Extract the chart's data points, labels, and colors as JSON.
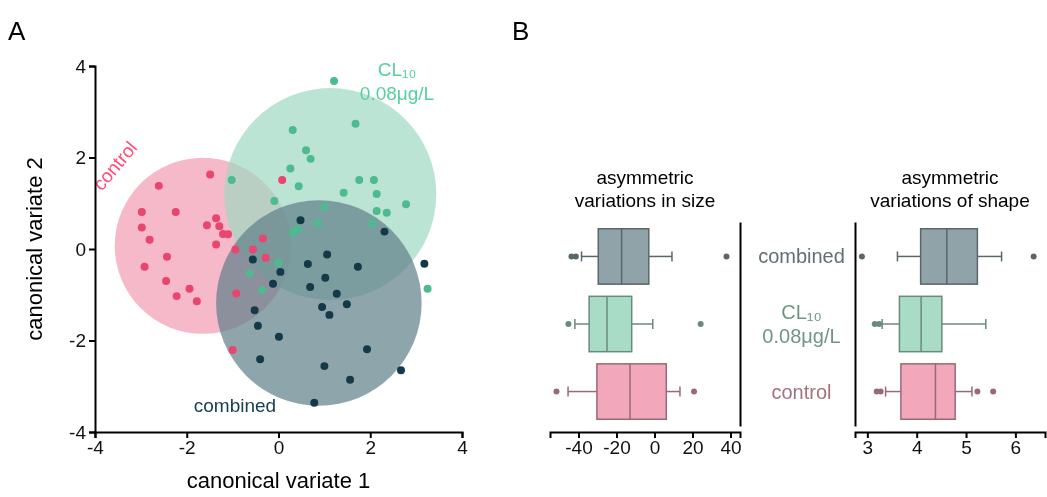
{
  "chart_data": [
    {
      "type": "scatter",
      "xlabel": "canonical variate 1",
      "ylabel": "canonical variate 2",
      "annotations": [
        "A"
      ],
      "xlim": [
        -4,
        4
      ],
      "ylim": [
        -4,
        4
      ],
      "xticks": [
        -4,
        -2,
        0,
        2,
        4
      ],
      "yticks": [
        -4,
        -2,
        0,
        2,
        4
      ],
      "marker": "circle",
      "grid": false,
      "series": [
        {
          "type": "bubble",
          "color": "#f19bb2",
          "x": [
            -1.65
          ],
          "values": [
            0.07
          ],
          "sizes": [
            0.69
          ]
        },
        {
          "type": "bubble",
          "color": "#9fd9c2",
          "x": [
            1.13
          ],
          "values": [
            1.2
          ],
          "sizes": [
            1
          ]
        },
        {
          "type": "bubble",
          "color": "#5f7f89",
          "x": [
            0.88
          ],
          "values": [
            -1.18
          ],
          "sizes": [
            0.94
          ]
        },
        {
          "name": "control",
          "color": "#e8456f",
          "x": [
            -1.49,
            -2.61,
            -2.98,
            -2.24,
            -2.98,
            -2.81,
            -1.36,
            -1.56,
            -1.29,
            -1.21,
            -1.1,
            -1.36,
            -2.43,
            -2.92,
            -0.94,
            -0.34,
            -0.56,
            -0.28,
            -2.45,
            -1.94,
            -2.22,
            -1.78,
            -0.92,
            0.08,
            -1.0
          ],
          "values": [
            1.63,
            1.38,
            0.81,
            0.81,
            0.47,
            0.2,
            0.67,
            0.52,
            0.5,
            0.33,
            0.32,
            0.1,
            -0.17,
            -0.39,
            -0.01,
            0.23,
            -0.01,
            -0.19,
            -0.7,
            -0.87,
            -1.03,
            -1.14,
            -0.97,
            1.51,
            -2.21
          ]
        },
        {
          "name": "CL₁₀ 0.08μg/L",
          "color": "#4dbb8f",
          "x": [
            1.21,
            1.68,
            0.31,
            0.6,
            0.7,
            0.26,
            0.44,
            -1.02,
            1.76,
            2.08,
            1.42,
            2.14,
            2.78,
            2.14,
            2.36,
            -0.09,
            1.0,
            0.86,
            2.04,
            0.31,
            0.42,
            0.0,
            -0.63,
            -0.36,
            3.25
          ],
          "values": [
            3.67,
            2.74,
            2.6,
            2.16,
            1.97,
            1.76,
            1.37,
            1.51,
            1.51,
            1.51,
            1.23,
            1.2,
            0.98,
            0.83,
            0.79,
            1.05,
            0.92,
            0.57,
            0.56,
            0.36,
            0.43,
            -0.3,
            -0.53,
            -0.9,
            -0.87
          ]
        },
        {
          "name": "combined",
          "color": "#143a4a",
          "x": [
            0.48,
            2.31,
            -0.56,
            0.04,
            -0.12,
            0.64,
            1.06,
            1.73,
            1.02,
            0.69,
            1.27,
            0.95,
            1.49,
            1.11,
            3.18,
            -0.52,
            -0.45,
            0.01,
            -0.4,
            1.0,
            1.93,
            1.56,
            2.67,
            0.78
          ],
          "values": [
            0.63,
            0.38,
            -0.23,
            -0.5,
            -0.76,
            -0.33,
            -0.12,
            -0.39,
            -0.63,
            -0.83,
            -0.98,
            -1.27,
            -1.21,
            -1.44,
            -0.32,
            -1.34,
            -1.68,
            -1.92,
            -2.41,
            -2.56,
            -2.19,
            -2.86,
            -2.65,
            -3.36
          ]
        }
      ]
    },
    {
      "type": "box",
      "orientation": "horizontal",
      "title": "asymmetric variations in size",
      "annotations": [
        "B"
      ],
      "colors": [
        "#8fa3a9",
        "#a9dcc6",
        "#f3a7ba"
      ],
      "xlim": [
        -55,
        45
      ],
      "xticks": [
        -40,
        -20,
        0,
        20,
        40
      ],
      "tick_labels": "x",
      "boxes": [
        {
          "low": -38.4,
          "q1": -29.6,
          "median": -17.3,
          "q3": -3.0,
          "high": 9.2,
          "outliers": [
            -43.7,
            -41.4,
            37.9
          ]
        },
        {
          "low": -41.9,
          "q1": -34.4,
          "median": -25.0,
          "q3": -12.0,
          "high": -0.9,
          "outliers": [
            -45.3,
            24.3
          ]
        },
        {
          "low": -45.5,
          "q1": -30.3,
          "median": -12.9,
          "q3": 6.2,
          "high": 13.4,
          "outliers": [
            -51.6,
            20.8
          ]
        }
      ]
    },
    {
      "type": "box",
      "orientation": "horizontal",
      "title": "asymmetric variations of shape",
      "categories": [
        "combined",
        "CL₁₀ 0.08μg/L",
        "control"
      ],
      "colors": [
        "#8fa3a9",
        "#a9dcc6",
        "#f3a7ba"
      ],
      "xlim": [
        2.75,
        6.6
      ],
      "xticks": [
        3,
        4,
        5,
        6
      ],
      "boxes": [
        {
          "low": 3.61,
          "q1": 4.08,
          "median": 4.61,
          "q3": 5.23,
          "high": 5.72,
          "outliers": [
            2.89,
            6.37
          ]
        },
        {
          "low": 3.3,
          "q1": 3.65,
          "median": 4.09,
          "q3": 4.51,
          "high": 5.4,
          "outliers": [
            3.15,
            3.24
          ]
        },
        {
          "low": 3.37,
          "q1": 3.68,
          "median": 4.38,
          "q3": 4.78,
          "high": 5.12,
          "outliers": [
            3.19,
            3.27,
            5.23,
            5.55
          ]
        }
      ]
    }
  ]
}
